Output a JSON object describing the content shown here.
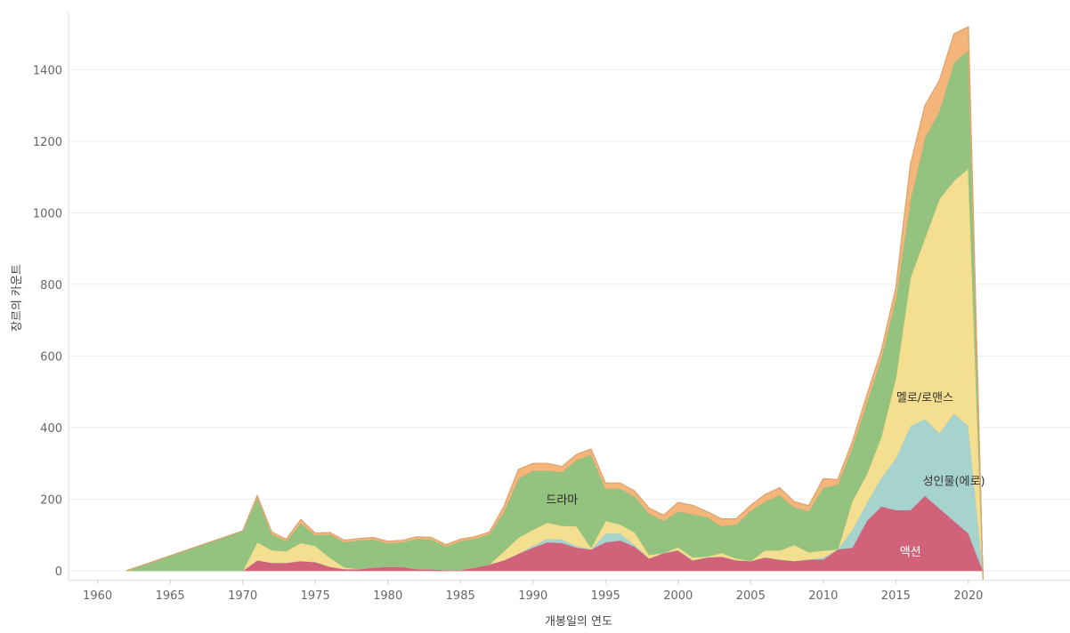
{
  "chart_data": {
    "type": "area",
    "stacked": true,
    "xlabel": "개봉일의 연도",
    "ylabel": "장르의 카운트",
    "xlim": [
      1958,
      2027
    ],
    "ylim": [
      -25,
      1560
    ],
    "x_ticks": [
      1960,
      1965,
      1970,
      1975,
      1980,
      1985,
      1990,
      1995,
      2000,
      2005,
      2010,
      2015,
      2020
    ],
    "y_ticks": [
      0,
      200,
      400,
      600,
      800,
      1000,
      1200,
      1400
    ],
    "grid": true,
    "series": [
      {
        "name": "액션",
        "color": "#d0637a",
        "label_at": [
          2016,
          55
        ],
        "label_color": "#ffffff",
        "points": [
          [
            1971,
            30
          ],
          [
            1972,
            23
          ],
          [
            1973,
            23
          ],
          [
            1974,
            28
          ],
          [
            1975,
            25
          ],
          [
            1976,
            12
          ],
          [
            1977,
            5
          ],
          [
            1978,
            5
          ],
          [
            1979,
            10
          ],
          [
            1980,
            12
          ],
          [
            1981,
            12
          ],
          [
            1982,
            5
          ],
          [
            1983,
            5
          ],
          [
            1984,
            3
          ],
          [
            1985,
            3
          ],
          [
            1986,
            10
          ],
          [
            1987,
            18
          ],
          [
            1988,
            30
          ],
          [
            1989,
            48
          ],
          [
            1990,
            65
          ],
          [
            1991,
            80
          ],
          [
            1992,
            78
          ],
          [
            1993,
            65
          ],
          [
            1994,
            60
          ],
          [
            1995,
            80
          ],
          [
            1996,
            85
          ],
          [
            1997,
            68
          ],
          [
            1998,
            35
          ],
          [
            1999,
            50
          ],
          [
            2000,
            58
          ],
          [
            2001,
            30
          ],
          [
            2002,
            38
          ],
          [
            2003,
            40
          ],
          [
            2004,
            30
          ],
          [
            2005,
            28
          ],
          [
            2006,
            38
          ],
          [
            2007,
            32
          ],
          [
            2008,
            28
          ],
          [
            2009,
            32
          ],
          [
            2010,
            32
          ],
          [
            2011,
            60
          ],
          [
            2012,
            65
          ],
          [
            2013,
            140
          ],
          [
            2014,
            180
          ],
          [
            2015,
            170
          ],
          [
            2016,
            170
          ],
          [
            2017,
            210
          ],
          [
            2018,
            175
          ],
          [
            2019,
            140
          ],
          [
            2020,
            105
          ]
        ]
      },
      {
        "name": "성인물(에로)",
        "color": "#a7d3cf",
        "label_at": [
          2019,
          252
        ],
        "label_color": "#333333",
        "points": [
          [
            1971,
            0
          ],
          [
            1987,
            0
          ],
          [
            1988,
            0
          ],
          [
            1989,
            0
          ],
          [
            1990,
            5
          ],
          [
            1991,
            10
          ],
          [
            1992,
            10
          ],
          [
            1993,
            5
          ],
          [
            1994,
            0
          ],
          [
            1995,
            25
          ],
          [
            1996,
            20
          ],
          [
            1997,
            5
          ],
          [
            1998,
            0
          ],
          [
            2009,
            0
          ],
          [
            2010,
            5
          ],
          [
            2011,
            0
          ],
          [
            2012,
            50
          ],
          [
            2013,
            50
          ],
          [
            2014,
            80
          ],
          [
            2015,
            145
          ],
          [
            2016,
            235
          ],
          [
            2017,
            215
          ],
          [
            2018,
            210
          ],
          [
            2019,
            300
          ],
          [
            2020,
            300
          ]
        ]
      },
      {
        "name": "멜로/로맨스",
        "color": "#f3df8f",
        "label_at": [
          2017,
          485
        ],
        "label_color": "#333333",
        "points": [
          [
            1971,
            50
          ],
          [
            1972,
            35
          ],
          [
            1973,
            32
          ],
          [
            1974,
            50
          ],
          [
            1975,
            45
          ],
          [
            1976,
            25
          ],
          [
            1977,
            5
          ],
          [
            1978,
            0
          ],
          [
            1987,
            0
          ],
          [
            1988,
            25
          ],
          [
            1989,
            45
          ],
          [
            1990,
            45
          ],
          [
            1991,
            45
          ],
          [
            1992,
            38
          ],
          [
            1993,
            55
          ],
          [
            1994,
            5
          ],
          [
            1995,
            35
          ],
          [
            1996,
            25
          ],
          [
            1997,
            35
          ],
          [
            1998,
            10
          ],
          [
            1999,
            0
          ],
          [
            2000,
            8
          ],
          [
            2001,
            8
          ],
          [
            2002,
            2
          ],
          [
            2003,
            10
          ],
          [
            2004,
            5
          ],
          [
            2005,
            0
          ],
          [
            2006,
            20
          ],
          [
            2007,
            25
          ],
          [
            2008,
            45
          ],
          [
            2009,
            20
          ],
          [
            2010,
            20
          ],
          [
            2011,
            0
          ],
          [
            2012,
            80
          ],
          [
            2013,
            80
          ],
          [
            2014,
            115
          ],
          [
            2015,
            225
          ],
          [
            2016,
            415
          ],
          [
            2017,
            505
          ],
          [
            2018,
            655
          ],
          [
            2019,
            650
          ],
          [
            2020,
            720
          ]
        ]
      },
      {
        "name": "드라마",
        "color": "#93c37f",
        "label_at": [
          1992,
          200
        ],
        "label_color": "#222222",
        "points": [
          [
            1962,
            0
          ],
          [
            1971,
            125
          ],
          [
            1972,
            45
          ],
          [
            1973,
            28
          ],
          [
            1974,
            55
          ],
          [
            1975,
            30
          ],
          [
            1976,
            65
          ],
          [
            1977,
            70
          ],
          [
            1978,
            80
          ],
          [
            1979,
            78
          ],
          [
            1980,
            65
          ],
          [
            1981,
            68
          ],
          [
            1982,
            85
          ],
          [
            1983,
            83
          ],
          [
            1984,
            65
          ],
          [
            1985,
            80
          ],
          [
            1986,
            80
          ],
          [
            1987,
            85
          ],
          [
            1988,
            110
          ],
          [
            1989,
            165
          ],
          [
            1990,
            165
          ],
          [
            1991,
            145
          ],
          [
            1992,
            150
          ],
          [
            1993,
            185
          ],
          [
            1994,
            260
          ],
          [
            1995,
            90
          ],
          [
            1996,
            100
          ],
          [
            1997,
            100
          ],
          [
            1998,
            115
          ],
          [
            1999,
            90
          ],
          [
            2000,
            100
          ],
          [
            2001,
            120
          ],
          [
            2002,
            110
          ],
          [
            2003,
            75
          ],
          [
            2004,
            95
          ],
          [
            2005,
            140
          ],
          [
            2006,
            135
          ],
          [
            2007,
            155
          ],
          [
            2008,
            105
          ],
          [
            2009,
            115
          ],
          [
            2010,
            175
          ],
          [
            2011,
            180
          ],
          [
            2012,
            150
          ],
          [
            2013,
            200
          ],
          [
            2014,
            220
          ],
          [
            2015,
            220
          ],
          [
            2016,
            215
          ],
          [
            2017,
            280
          ],
          [
            2018,
            245
          ],
          [
            2019,
            330
          ],
          [
            2020,
            330
          ],
          [
            2021,
            -25
          ]
        ]
      },
      {
        "name": "",
        "color": "#f4b57b",
        "label_at": null,
        "label_color": "#333333",
        "points": [
          [
            1971,
            5
          ],
          [
            1972,
            5
          ],
          [
            1973,
            5
          ],
          [
            1974,
            10
          ],
          [
            1975,
            5
          ],
          [
            1976,
            5
          ],
          [
            1977,
            5
          ],
          [
            1978,
            5
          ],
          [
            1979,
            5
          ],
          [
            1980,
            5
          ],
          [
            1981,
            5
          ],
          [
            1982,
            5
          ],
          [
            1983,
            5
          ],
          [
            1984,
            5
          ],
          [
            1985,
            5
          ],
          [
            1986,
            5
          ],
          [
            1987,
            5
          ],
          [
            1988,
            15
          ],
          [
            1989,
            25
          ],
          [
            1990,
            20
          ],
          [
            1991,
            20
          ],
          [
            1992,
            15
          ],
          [
            1993,
            15
          ],
          [
            1994,
            15
          ],
          [
            1995,
            15
          ],
          [
            1996,
            15
          ],
          [
            1997,
            15
          ],
          [
            1998,
            15
          ],
          [
            1999,
            15
          ],
          [
            2000,
            25
          ],
          [
            2001,
            25
          ],
          [
            2002,
            15
          ],
          [
            2003,
            20
          ],
          [
            2004,
            15
          ],
          [
            2005,
            15
          ],
          [
            2006,
            20
          ],
          [
            2007,
            20
          ],
          [
            2008,
            15
          ],
          [
            2009,
            15
          ],
          [
            2010,
            25
          ],
          [
            2011,
            15
          ],
          [
            2012,
            15
          ],
          [
            2013,
            20
          ],
          [
            2014,
            20
          ],
          [
            2015,
            30
          ],
          [
            2016,
            100
          ],
          [
            2017,
            90
          ],
          [
            2018,
            85
          ],
          [
            2019,
            80
          ],
          [
            2020,
            65
          ]
        ]
      }
    ]
  }
}
